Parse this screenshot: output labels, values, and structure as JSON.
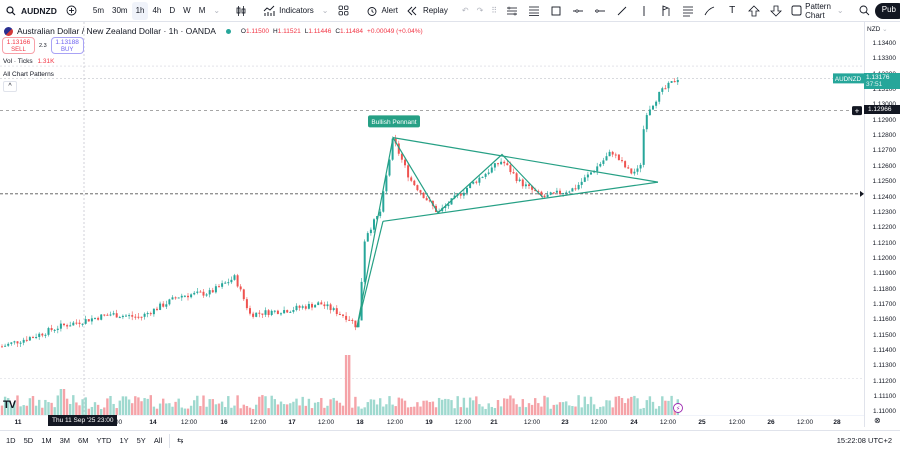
{
  "toolbar": {
    "symbol": "AUDNZD",
    "intervals": [
      "5m",
      "30m",
      "1h",
      "4h",
      "D",
      "W",
      "M"
    ],
    "active_interval": "1h",
    "indicators_label": "Indicators",
    "alert_label": "Alert",
    "replay_label": "Replay",
    "pattern_chart_label": "Pattern Chart",
    "publish_label": "Pub"
  },
  "legend": {
    "title": "Australian Dollar / New Zealand Dollar · 1h · OANDA",
    "o_label": "O",
    "o": "1.11500",
    "h_label": "H",
    "h": "1.11521",
    "l_label": "L",
    "l": "1.11446",
    "c_label": "C",
    "c": "1.11484",
    "change": "+0.00049 (+0.04%)",
    "sell_price": "1.13166",
    "sell_label": "SELL",
    "spread": "2.3",
    "buy_price": "1.13188",
    "buy_label": "BUY",
    "vol_label": "Vol · Ticks",
    "vol_value": "1.31K",
    "patterns_label": "All Chart Patterns",
    "collapse_glyph": "^"
  },
  "price_axis": {
    "currency": "NZD",
    "ticks": [
      "1.13400",
      "1.13300",
      "1.13200",
      "1.13100",
      "1.13000",
      "1.12900",
      "1.12800",
      "1.12700",
      "1.12600",
      "1.12500",
      "1.12400",
      "1.12300",
      "1.12200",
      "1.12100",
      "1.12000",
      "1.11900",
      "1.11800",
      "1.11700",
      "1.11600",
      "1.11500",
      "1.11400",
      "1.11300",
      "1.11200",
      "1.11100",
      "1.11000"
    ],
    "last_price_symbol": "AUDNZD",
    "last_price": "1.13176",
    "countdown": "37:51",
    "crosshair_price": "1.12966"
  },
  "time_axis": {
    "labels": [
      {
        "t": "11",
        "bold": true
      },
      {
        "t": "12:00",
        "bold": false
      },
      {
        "t": "14",
        "bold": true
      },
      {
        "t": "12:00",
        "bold": false
      },
      {
        "t": "16",
        "bold": true
      },
      {
        "t": "12:00",
        "bold": false
      },
      {
        "t": "17",
        "bold": true
      },
      {
        "t": "12:00",
        "bold": false
      },
      {
        "t": "18",
        "bold": true
      },
      {
        "t": "12:00",
        "bold": false
      },
      {
        "t": "19",
        "bold": true
      },
      {
        "t": "12:00",
        "bold": false
      },
      {
        "t": "21",
        "bold": true
      },
      {
        "t": "12:00",
        "bold": false
      },
      {
        "t": "23",
        "bold": true
      },
      {
        "t": "12:00",
        "bold": false
      },
      {
        "t": "24",
        "bold": true
      },
      {
        "t": "12:00",
        "bold": false
      },
      {
        "t": "25",
        "bold": true
      },
      {
        "t": "12:00",
        "bold": false
      },
      {
        "t": "26",
        "bold": true
      },
      {
        "t": "12:00",
        "bold": false
      },
      {
        "t": "28",
        "bold": true
      }
    ],
    "crosshair_time": "Thu 11 Sep '25   23:00"
  },
  "pattern": {
    "label": "Bullish Pennant",
    "color": "#26a085"
  },
  "bottom_bar": {
    "ranges": [
      "1D",
      "5D",
      "1M",
      "3M",
      "6M",
      "YTD",
      "1Y",
      "5Y",
      "All"
    ],
    "clock": "15:22:08 UTC+2"
  },
  "colors": {
    "up": "#26a69a",
    "down": "#ef5350",
    "vol_up": "#9fd9cf",
    "vol_down": "#f5a3a8",
    "pattern": "#26a085",
    "sell": "#f23645",
    "buy": "#6a5ff0"
  }
}
